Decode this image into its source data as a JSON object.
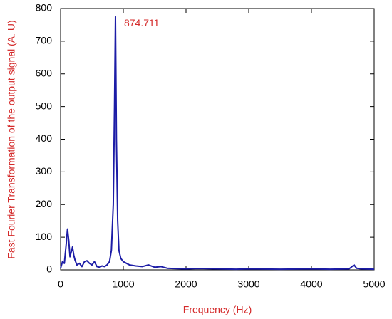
{
  "chart_data": {
    "type": "line",
    "x_label": "Frequency (Hz)",
    "y_label": "Fast Fourier Transformation of the output signal (A. U)",
    "x": [
      0,
      30,
      60,
      90,
      110,
      130,
      150,
      170,
      190,
      210,
      230,
      260,
      300,
      340,
      380,
      420,
      460,
      500,
      540,
      580,
      620,
      660,
      700,
      740,
      780,
      810,
      840,
      860,
      874.711,
      890,
      910,
      930,
      960,
      1000,
      1050,
      1100,
      1200,
      1300,
      1400,
      1500,
      1600,
      1700,
      1800,
      2000,
      2200,
      2500,
      2800,
      3000,
      3500,
      4000,
      4300,
      4600,
      4680,
      4720,
      4800,
      5000
    ],
    "values": [
      5,
      25,
      20,
      80,
      125,
      90,
      40,
      55,
      70,
      45,
      30,
      15,
      20,
      10,
      25,
      28,
      20,
      15,
      25,
      10,
      8,
      12,
      10,
      15,
      25,
      60,
      200,
      500,
      775,
      400,
      150,
      60,
      35,
      25,
      20,
      15,
      12,
      10,
      15,
      8,
      10,
      5,
      4,
      3,
      4,
      3,
      2,
      3,
      2,
      3,
      2,
      3,
      15,
      5,
      3,
      2
    ],
    "color": "#1c1ca6",
    "annotations": [
      {
        "text": "874.711",
        "x": 874.711,
        "y": 775
      }
    ],
    "xlim": [
      0,
      5000
    ],
    "xticks": [
      0,
      1000,
      2000,
      3000,
      4000,
      5000
    ],
    "ylim": [
      0,
      800
    ],
    "yticks": [
      0,
      100,
      200,
      300,
      400,
      500,
      600,
      700,
      800
    ]
  }
}
